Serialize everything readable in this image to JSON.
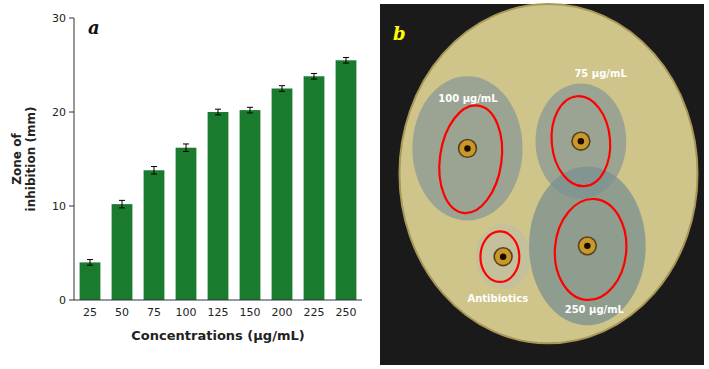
{
  "chart_data": {
    "type": "bar",
    "categories": [
      "25",
      "50",
      "75",
      "100",
      "125",
      "150",
      "200",
      "225",
      "250"
    ],
    "values": [
      4.0,
      10.2,
      13.8,
      16.2,
      20.0,
      20.2,
      22.5,
      23.8,
      25.5
    ],
    "errors": [
      0.3,
      0.4,
      0.4,
      0.4,
      0.3,
      0.3,
      0.3,
      0.3,
      0.3
    ],
    "color": "#1a7a2e",
    "xlabel": "Concentrations (µg/mL)",
    "ylabel": "Zone of\ninhibition (mm)",
    "ylim": [
      0,
      30
    ],
    "yticks": [
      0,
      10,
      20,
      30
    ],
    "grid": false,
    "annotations": [
      "a",
      "b",
      "100 µg/mL",
      "75 µg/mL",
      "Antibiotics",
      "250 µg/mL"
    ]
  }
}
